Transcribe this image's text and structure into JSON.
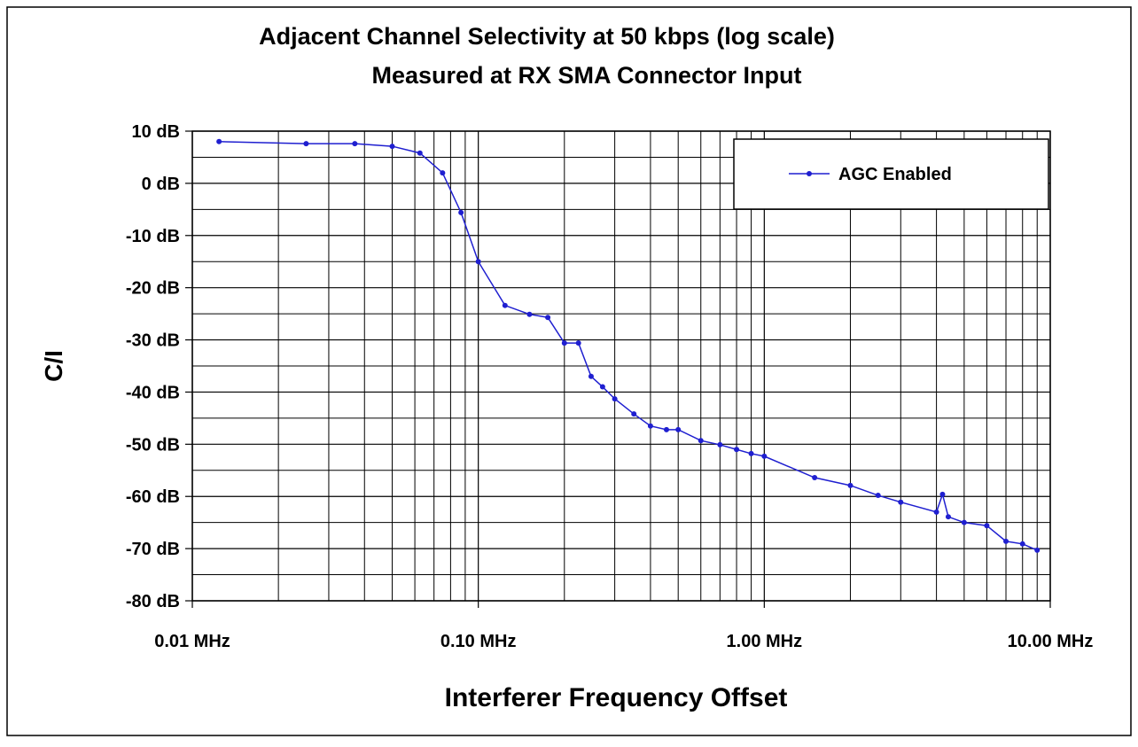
{
  "chart_data": {
    "type": "line",
    "title": "Adjacent Channel Selectivity at 50 kbps (log scale)",
    "subtitle": "Measured at RX SMA Connector Input",
    "x_label": "Interferer Frequency Offset",
    "y_label": "C/I",
    "xlog": true,
    "xlim": [
      0.01,
      10
    ],
    "ylim": [
      -80,
      10
    ],
    "xticks": [
      {
        "value": 0.01,
        "label": "0.01 MHz"
      },
      {
        "value": 0.1,
        "label": "0.10 MHz"
      },
      {
        "value": 1,
        "label": "1.00 MHz"
      },
      {
        "value": 10,
        "label": "10.00 MHz"
      }
    ],
    "xminorticks": [
      0.02,
      0.03,
      0.04,
      0.05,
      0.06,
      0.07,
      0.08,
      0.09,
      0.2,
      0.3,
      0.4,
      0.5,
      0.6,
      0.7,
      0.8,
      0.9,
      2,
      3,
      4,
      5,
      6,
      7,
      8,
      9
    ],
    "yticks": [
      {
        "value": 10,
        "label": "10 dB"
      },
      {
        "value": 0,
        "label": "0 dB"
      },
      {
        "value": -10,
        "label": "-10 dB"
      },
      {
        "value": -20,
        "label": "-20 dB"
      },
      {
        "value": -30,
        "label": "-30 dB"
      },
      {
        "value": -40,
        "label": "-40 dB"
      },
      {
        "value": -50,
        "label": "-50 dB"
      },
      {
        "value": -60,
        "label": "-60 dB"
      },
      {
        "value": -70,
        "label": "-70 dB"
      },
      {
        "value": -80,
        "label": "-80 dB"
      }
    ],
    "yminorticks": [
      5,
      -5,
      -15,
      -25,
      -35,
      -45,
      -55,
      -65,
      -75
    ],
    "grid": true,
    "legend": "upper right",
    "x": [
      0.0124,
      0.025,
      0.037,
      0.05,
      0.0625,
      0.075,
      0.087,
      0.1,
      0.124,
      0.151,
      0.175,
      0.2,
      0.224,
      0.248,
      0.272,
      0.3,
      0.35,
      0.4,
      0.455,
      0.5,
      0.6,
      0.7,
      0.8,
      0.9,
      1.0,
      1.5,
      2.0,
      2.5,
      3.0,
      4.0,
      4.2,
      4.4,
      5.0,
      6.0,
      7.0,
      8.0,
      9.0
    ],
    "series": [
      {
        "name": "AGC Enabled",
        "color": "#1f1fd0",
        "values": [
          8.0,
          7.6,
          7.6,
          7.1,
          5.8,
          2.0,
          -5.6,
          -15,
          -23.4,
          -25.1,
          -25.7,
          -30.6,
          -30.6,
          -37,
          -39,
          -41.3,
          -44.2,
          -46.5,
          -47.2,
          -47.2,
          -49.3,
          -50.1,
          -51,
          -51.8,
          -52.3,
          -56.4,
          -57.9,
          -59.8,
          -61.1,
          -63,
          -59.6,
          -63.9,
          -65,
          -65.6,
          -68.6,
          -69.1,
          -70.3
        ]
      }
    ]
  }
}
